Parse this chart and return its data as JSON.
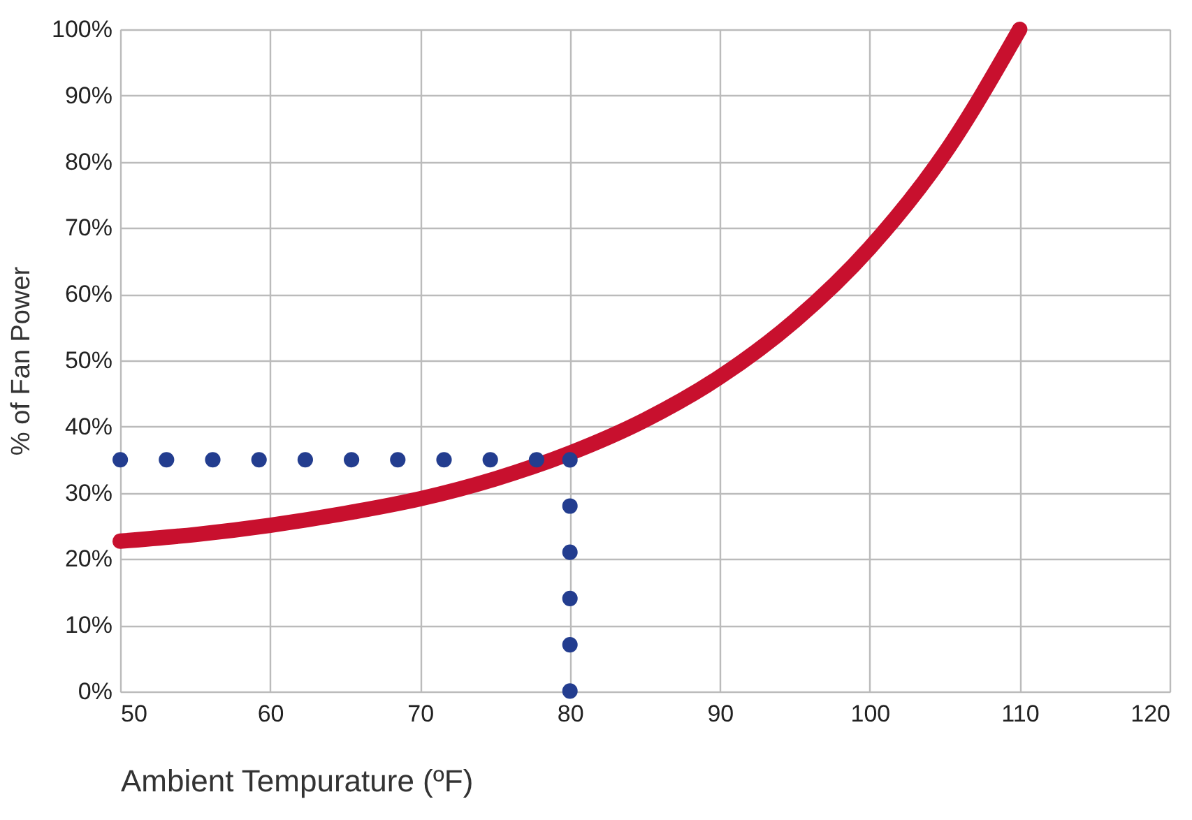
{
  "chart_data": {
    "type": "line",
    "xlabel": "Ambient Tempurature (ºF)",
    "ylabel": "% of Fan Power",
    "xlim": [
      50,
      120
    ],
    "xticks": [
      50,
      60,
      70,
      80,
      90,
      100,
      110,
      120
    ],
    "ylim": [
      0,
      100
    ],
    "yticks": [
      {
        "value": 0,
        "label": "0%"
      },
      {
        "value": 10,
        "label": "10%"
      },
      {
        "value": 20,
        "label": "20%"
      },
      {
        "value": 30,
        "label": "30%"
      },
      {
        "value": 40,
        "label": "40%"
      },
      {
        "value": 50,
        "label": "50%"
      },
      {
        "value": 60,
        "label": "60%"
      },
      {
        "value": 70,
        "label": "70%"
      },
      {
        "value": 80,
        "label": "80%"
      },
      {
        "value": 90,
        "label": "90%"
      },
      {
        "value": 100,
        "label": "100%"
      }
    ],
    "grid": true,
    "series": [
      {
        "color": "#c8102e",
        "line_style": "solid",
        "x": [
          50,
          55,
          60,
          65,
          70,
          75,
          80,
          85,
          90,
          95,
          100,
          105,
          110
        ],
        "values": [
          22.7,
          23.7,
          25.1,
          26.9,
          29.1,
          32.1,
          36,
          41,
          47.5,
          56,
          67,
          81.3,
          100
        ]
      },
      {
        "color": "#233d8f",
        "line_style": "dotted",
        "x": [
          50,
          80
        ],
        "values": [
          35,
          35
        ]
      },
      {
        "color": "#233d8f",
        "line_style": "dotted",
        "x": [
          80,
          80
        ],
        "values": [
          35,
          0
        ]
      }
    ]
  }
}
